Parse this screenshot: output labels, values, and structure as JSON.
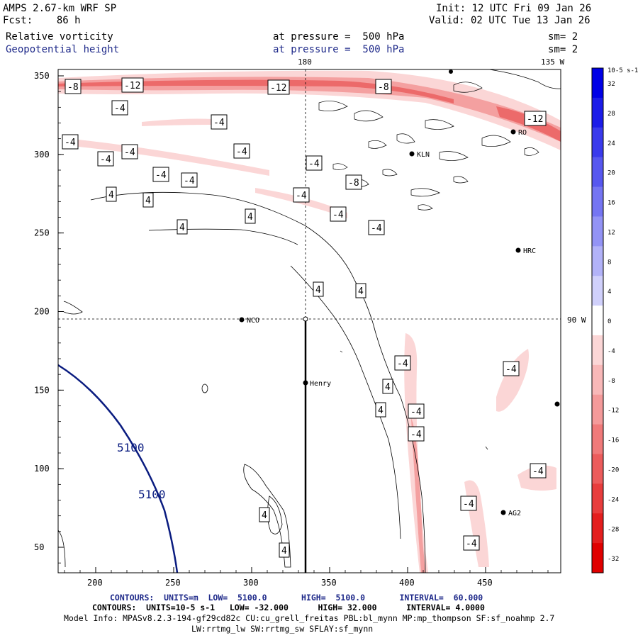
{
  "header": {
    "model_title": "AMPS 2.67-km WRF SP",
    "forecast_line": "Fcst:    86 h",
    "init_line": "Init: 12 UTC Fri 09 Jan 26",
    "valid_line": "Valid: 02 UTC Tue 13 Jan 26",
    "field1": "Relative vorticity",
    "field1_level": "at pressure =  500 hPa",
    "field1_smooth": "sm= 2",
    "field2": "Geopotential height",
    "field2_level": "at pressure =  500 hPa",
    "field2_smooth": "sm= 2"
  },
  "map": {
    "lon_label_180": "180",
    "lon_label_135": "135 W",
    "lon_label_90": "90 W",
    "x_ticks": [
      "200",
      "250",
      "300",
      "350",
      "400",
      "450"
    ],
    "y_ticks": [
      "350",
      "300",
      "250",
      "200",
      "150",
      "100",
      "50"
    ],
    "stations": [
      "NCO",
      "Henry",
      "HRC",
      "KLN",
      "AG2",
      "RO"
    ],
    "height_labels": [
      "5100",
      "5100"
    ],
    "vort_labels": [
      "-8",
      "-12",
      "-12",
      "-8",
      "-12",
      "-4",
      "-4",
      "-4",
      "-4",
      "-8",
      "-4",
      "-4",
      "-4",
      "-4",
      "-4",
      "-4",
      "-4",
      "-4",
      "4",
      "4",
      "4",
      "4",
      "4",
      "4",
      "4",
      "4",
      "4",
      "4",
      "-4",
      "-4",
      "-4",
      "-4",
      "-4",
      "-4",
      "-4"
    ]
  },
  "colorbar": {
    "unit_label": "10-5 s-1",
    "labels": [
      "32",
      "28",
      "24",
      "20",
      "16",
      "12",
      "8",
      "4",
      "0",
      "-4",
      "-8",
      "-12",
      "-16",
      "-20",
      "-24",
      "-28",
      "-32"
    ],
    "colors": [
      "#0000e6",
      "#1c1ce8",
      "#3a3aec",
      "#5757ef",
      "#7575f2",
      "#9393f5",
      "#b2b2f8",
      "#d0d0fb",
      "#ffffff",
      "#fbd6d6",
      "#f8b8b8",
      "#f49a9a",
      "#f07a7a",
      "#ec5c5c",
      "#e83d3d",
      "#e41e1e",
      "#e00000"
    ]
  },
  "footer": {
    "height_contours": "CONTOURS:  UNITS=m  LOW=  5100.0       HIGH=  5100.0       INTERVAL=  60.000",
    "vort_contours": "CONTOURS:  UNITS=10-5 s-1   LOW= -32.000      HIGH= 32.000      INTERVAL= 4.0000",
    "model_info": "Model Info: MPASv8.2.3-194-gf29cd82c CU:cu_grell_freitas PBL:bl_mynn MP:mp_thompson SF:sf_noahmp 2.7",
    "model_info2": "LW:rrtmg_lw SW:rrtmg_sw SFLAY:sf_mynn"
  }
}
